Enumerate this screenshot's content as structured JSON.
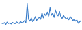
{
  "chart_data": {
    "type": "line",
    "color": "#3a7dc9",
    "tick_labels": false,
    "x": [
      0,
      1,
      2,
      3,
      4,
      5,
      6,
      7,
      8,
      9,
      10,
      11,
      12,
      13,
      14,
      15,
      16,
      17,
      18,
      19,
      20,
      21,
      22,
      23,
      24,
      25,
      26,
      27,
      28,
      29,
      30,
      31,
      32,
      33,
      34,
      35,
      36,
      37,
      38,
      39,
      40,
      41,
      42,
      43,
      44,
      45,
      46,
      47,
      48,
      49,
      50,
      51,
      52,
      53,
      54,
      55,
      56,
      57,
      58,
      59
    ],
    "values": [
      20,
      18,
      22,
      15,
      24,
      19,
      21,
      17,
      23,
      20,
      18,
      25,
      22,
      19,
      27,
      21,
      24,
      30,
      22,
      95,
      35,
      28,
      40,
      26,
      32,
      45,
      30,
      38,
      42,
      35,
      60,
      40,
      55,
      48,
      62,
      45,
      80,
      50,
      58,
      42,
      70,
      55,
      48,
      65,
      45,
      38,
      50,
      42,
      36,
      40,
      33,
      45,
      38,
      30,
      35,
      28,
      32,
      20,
      25,
      30
    ],
    "xlim": [
      0,
      59
    ],
    "ylim": [
      0,
      100
    ]
  }
}
